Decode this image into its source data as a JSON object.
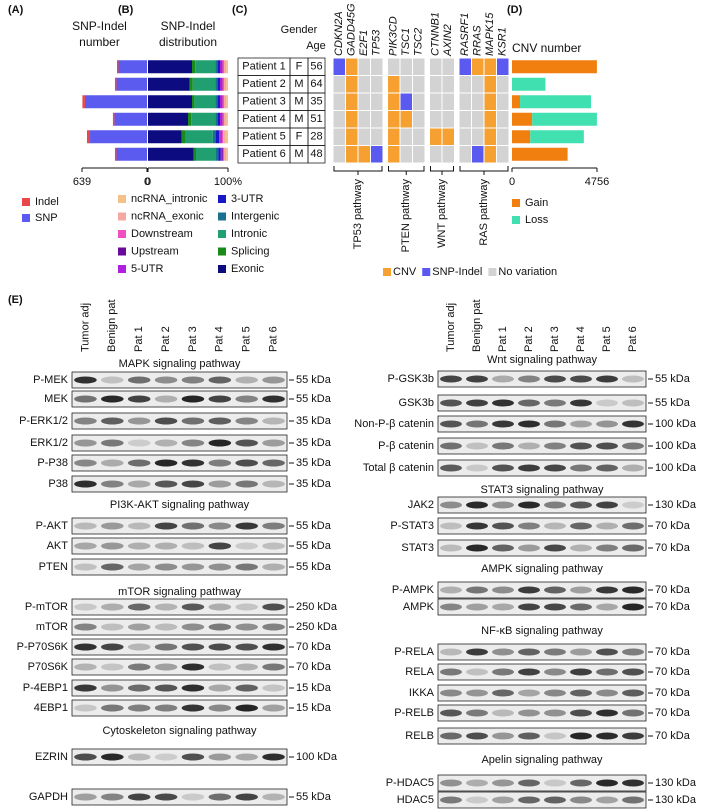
{
  "panel_labels": [
    "(A)",
    "(B)",
    "(C)",
    "(D)",
    "(E)"
  ],
  "chart_data": [
    {
      "type": "bar",
      "orientation": "horizontal",
      "stacked": true,
      "x_reversed": true,
      "title": "SNP-Indel number",
      "categories": [
        null,
        null,
        null,
        null,
        null,
        null
      ],
      "series": [
        {
          "name": "SNP",
          "color": "#5b5bef",
          "values": [
            280,
            300,
            610,
            320,
            560,
            300
          ]
        },
        {
          "name": "Indel",
          "color": "#e8474b",
          "values": [
            15,
            15,
            25,
            15,
            30,
            15
          ]
        }
      ],
      "xlim": [
        0,
        639
      ],
      "xticks": [
        0,
        639
      ]
    },
    {
      "type": "bar",
      "orientation": "horizontal",
      "stacked": true,
      "title": "SNP-Indel distribution",
      "categories": [
        null,
        null,
        null,
        null,
        null,
        null
      ],
      "series": [
        {
          "name": "Exonic",
          "color": "#0c0c80",
          "values": [
            55,
            52,
            55,
            50,
            42,
            57
          ]
        },
        {
          "name": "Splicing",
          "color": "#1a8a1a",
          "values": [
            4,
            4,
            3,
            4,
            5,
            3
          ]
        },
        {
          "name": "Intronic",
          "color": "#20a070",
          "values": [
            25,
            28,
            26,
            30,
            34,
            25
          ]
        },
        {
          "name": "Intergenic",
          "color": "#1a7090",
          "values": [
            3,
            3,
            3,
            3,
            4,
            3
          ]
        },
        {
          "name": "3-UTR",
          "color": "#1818c8",
          "values": [
            3,
            3,
            3,
            3,
            4,
            3
          ]
        },
        {
          "name": "5-UTR",
          "color": "#b020e0",
          "values": [
            2,
            2,
            2,
            2,
            2,
            2
          ]
        },
        {
          "name": "Upstream",
          "color": "#6a0a9a",
          "values": [
            1,
            1,
            1,
            1,
            1,
            1
          ]
        },
        {
          "name": "Downstream",
          "color": "#f050c0",
          "values": [
            2,
            2,
            2,
            2,
            2,
            1
          ]
        },
        {
          "name": "ncRNA_exonic",
          "color": "#f5a8a0",
          "values": [
            3,
            3,
            3,
            3,
            3,
            3
          ]
        },
        {
          "name": "ncRNA_intronic",
          "color": "#f5c08a",
          "values": [
            2,
            2,
            2,
            2,
            3,
            2
          ]
        }
      ],
      "xlim": [
        0,
        100
      ],
      "xticks": [
        0,
        {
          "value": 100,
          "label": "100%"
        }
      ]
    },
    {
      "type": "bar",
      "orientation": "horizontal",
      "stacked": true,
      "title": "CNV number",
      "categories": [
        null,
        null,
        null,
        null,
        null,
        null
      ],
      "series": [
        {
          "name": "Gain",
          "color": "#f07f10",
          "values": [
            4750,
            0,
            450,
            1130,
            1020,
            3110
          ]
        },
        {
          "name": "Loss",
          "color": "#40e0b0",
          "values": [
            0,
            1870,
            3970,
            3620,
            3000,
            0
          ]
        }
      ],
      "xlim": [
        0,
        4756
      ],
      "xticks": [
        0,
        4756
      ]
    }
  ],
  "patients": {
    "header": [
      "Gender",
      "Age"
    ],
    "rows": [
      [
        "Patient 1",
        "F",
        56
      ],
      [
        "Patient 2",
        "M",
        64
      ],
      [
        "Patient 3",
        "M",
        35
      ],
      [
        "Patient 4",
        "M",
        51
      ],
      [
        "Patient 5",
        "F",
        28
      ],
      [
        "Patient 6",
        "M",
        48
      ]
    ]
  },
  "variants": {
    "pathways": [
      {
        "name": "TP53 pathway",
        "genes": [
          "CDKN2A",
          "GADD45G",
          "E2F1",
          "TP53"
        ]
      },
      {
        "name": "PTEN pathway",
        "genes": [
          "PIK3CD",
          "TSC1",
          "TSC2"
        ]
      },
      {
        "name": "WNT pathway",
        "genes": [
          "CTNNB1",
          "AXIN2"
        ]
      },
      {
        "name": "RAS pathway",
        "genes": [
          "RASRF1",
          "RRAS",
          "MAPK15",
          "KSR1"
        ]
      }
    ],
    "legend": [
      {
        "label": "CNV",
        "color": "#f5a030"
      },
      {
        "label": "SNP-Indel",
        "color": "#5a5af0"
      },
      {
        "label": "No variation",
        "color": "#d3d3d3"
      }
    ],
    "cells": [
      [
        "SNP-Indel",
        "CNV",
        "No variation",
        "No variation",
        "No variation",
        "No variation",
        "No variation",
        "No variation",
        "No variation",
        "SNP-Indel",
        "CNV",
        "CNV",
        "SNP-Indel"
      ],
      [
        "No variation",
        "CNV",
        "No variation",
        "No variation",
        "CNV",
        "No variation",
        "No variation",
        "No variation",
        "No variation",
        "No variation",
        "No variation",
        "CNV",
        "No variation"
      ],
      [
        "No variation",
        "CNV",
        "No variation",
        "No variation",
        "CNV",
        "SNP-Indel",
        "No variation",
        "No variation",
        "No variation",
        "No variation",
        "No variation",
        "CNV",
        "No variation"
      ],
      [
        "No variation",
        "CNV",
        "No variation",
        "No variation",
        "CNV",
        "CNV",
        "No variation",
        "No variation",
        "No variation",
        "No variation",
        "No variation",
        "CNV",
        "No variation"
      ],
      [
        "No variation",
        "CNV",
        "No variation",
        "No variation",
        "CNV",
        "No variation",
        "No variation",
        "CNV",
        "CNV",
        "No variation",
        "No variation",
        "CNV",
        "No variation"
      ],
      [
        "No variation",
        "CNV",
        "CNV",
        "SNP-Indel",
        "CNV",
        "No variation",
        "No variation",
        "No variation",
        "No variation",
        "No variation",
        "SNP-Indel",
        "CNV",
        "No variation"
      ]
    ]
  },
  "blots": {
    "lanes": [
      "Tumor adj",
      "Benign pat",
      "Pat 1",
      "Pat 2",
      "Pat 3",
      "Pat 4",
      "Pat 5",
      "Pat 6"
    ],
    "left": [
      {
        "title": "MAPK signaling pathway",
        "rows": [
          {
            "protein": "P-MEK",
            "size": "55 kDa"
          },
          {
            "protein": "MEK",
            "size": "55 kDa"
          },
          {
            "protein": "P-ERK1/2",
            "size": "35 kDa"
          },
          {
            "protein": "ERK1/2",
            "size": "35 kDa"
          },
          {
            "protein": "P-P38",
            "size": "35 kDa"
          },
          {
            "protein": "P38",
            "size": "35 kDa"
          }
        ]
      },
      {
        "title": "PI3K-AKT signaling pathway",
        "rows": [
          {
            "protein": "P-AKT",
            "size": "55 kDa"
          },
          {
            "protein": "AKT",
            "size": "55 kDa"
          },
          {
            "protein": "PTEN",
            "size": "55 kDa"
          }
        ]
      },
      {
        "title": "mTOR signaling pathway",
        "rows": [
          {
            "protein": "P-mTOR",
            "size": "250 kDa"
          },
          {
            "protein": "mTOR",
            "size": "250 kDa"
          },
          {
            "protein": "P-P70S6K",
            "size": "70 kDa"
          },
          {
            "protein": "P70S6K",
            "size": "70 kDa"
          },
          {
            "protein": "P-4EBP1",
            "size": "15 kDa"
          },
          {
            "protein": "4EBP1",
            "size": "15 kDa"
          }
        ]
      },
      {
        "title": "Cytoskeleton signaling pathway",
        "rows": [
          {
            "protein": "EZRIN",
            "size": "100 kDa"
          }
        ]
      },
      {
        "rows": [
          {
            "protein": "GAPDH",
            "size": "55 kDa"
          }
        ]
      }
    ],
    "right": [
      {
        "title": "Wnt signaling pathway",
        "rows": [
          {
            "protein": "P-GSK3b",
            "size": "55 kDa"
          },
          {
            "protein": "GSK3b",
            "size": "55 kDa"
          },
          {
            "protein": "Non-P-β catenin",
            "size": "100 kDa"
          },
          {
            "protein": "P-β catenin",
            "size": "100 kDa"
          },
          {
            "protein": "Total β catenin",
            "size": "100 kDa"
          }
        ]
      },
      {
        "title": "STAT3 signaling pathway",
        "rows": [
          {
            "protein": "JAK2",
            "size": "130 kDa"
          },
          {
            "protein": "P-STAT3",
            "size": "70 kDa"
          },
          {
            "protein": "STAT3",
            "size": "70 kDa"
          }
        ]
      },
      {
        "title": "AMPK signaling pathway",
        "rows": [
          {
            "protein": "P-AMPK",
            "size": "70 kDa"
          },
          {
            "protein": "AMPK",
            "size": "70 kDa"
          }
        ]
      },
      {
        "title": "NF-κB signaling pathway",
        "rows": [
          {
            "protein": "P-RELA",
            "size": "70 kDa"
          },
          {
            "protein": "RELA",
            "size": "70 kDa"
          },
          {
            "protein": "IKKA",
            "size": "70 kDa"
          },
          {
            "protein": "P-RELB",
            "size": "70 kDa"
          },
          {
            "protein": "RELB",
            "size": "70 kDa"
          }
        ]
      },
      {
        "title": "Apelin signaling pathway",
        "rows": [
          {
            "protein": "P-HDAC5",
            "size": "130 kDa"
          },
          {
            "protein": "HDAC5",
            "size": "130 kDa"
          }
        ]
      }
    ]
  }
}
